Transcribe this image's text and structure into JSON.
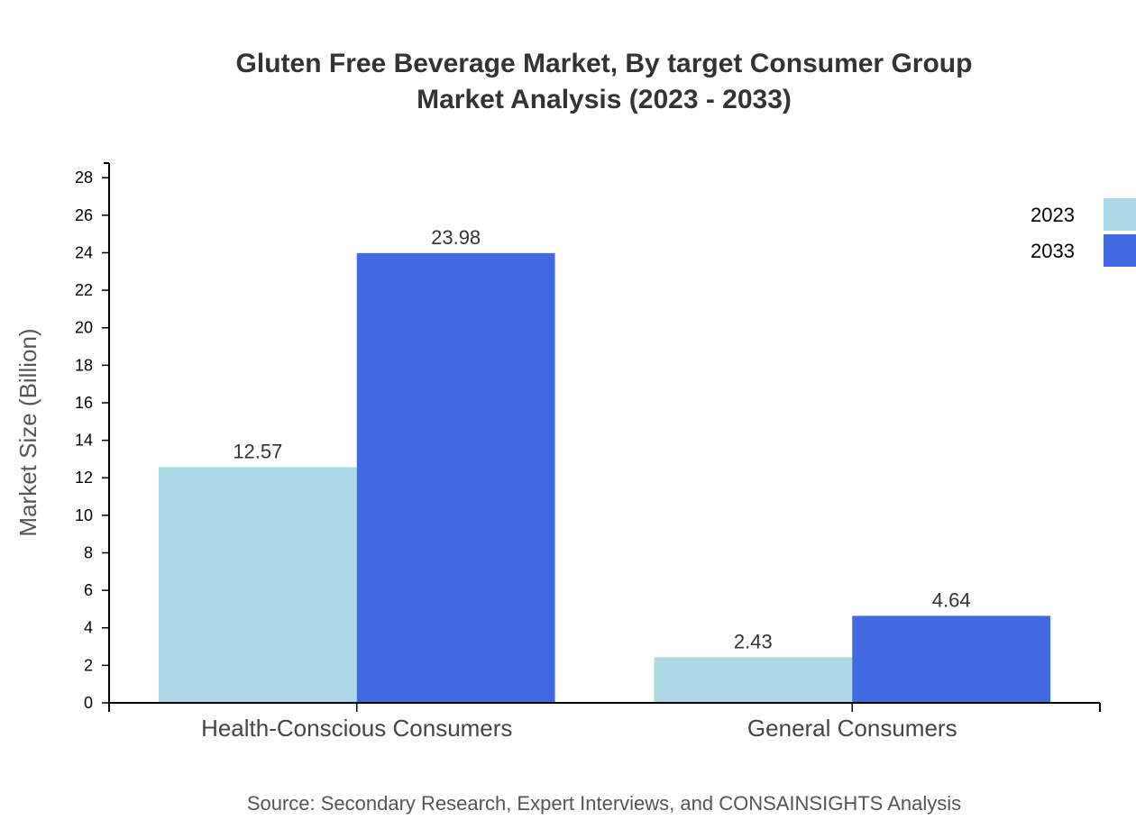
{
  "chart_data": {
    "type": "bar",
    "title": "Gluten Free Beverage Market, By target Consumer Group",
    "subtitle": "Market Analysis (2023 - 2033)",
    "categories": [
      "Health-Conscious Consumers",
      "General Consumers"
    ],
    "series": [
      {
        "name": "2023",
        "values": [
          12.57,
          2.43
        ],
        "color": "#add8e6"
      },
      {
        "name": "2033",
        "values": [
          23.98,
          4.64
        ],
        "color": "#4169e1"
      }
    ],
    "xlabel": "",
    "ylabel": "Market Size (Billion)",
    "ylim": [
      0,
      28.78
    ],
    "yticks": [
      0,
      2,
      4,
      6,
      8,
      10,
      12,
      14,
      16,
      18,
      20,
      22,
      24,
      26,
      28
    ],
    "grid": false,
    "legend": "top-right",
    "source": "Source: Secondary Research, Expert Interviews, and CONSAINSIGHTS Analysis"
  }
}
